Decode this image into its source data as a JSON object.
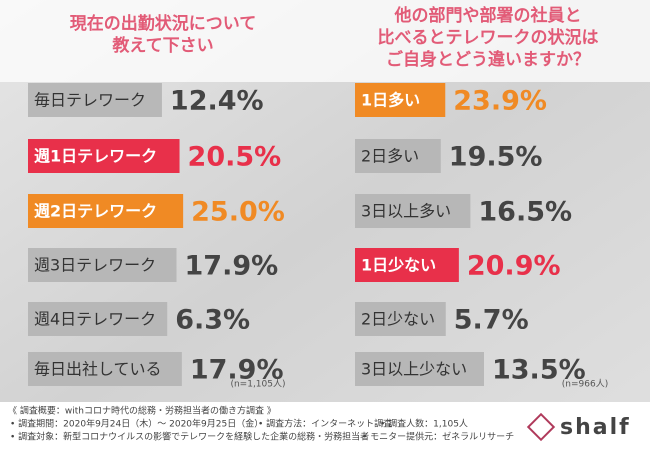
{
  "chart_data": [
    {
      "type": "bar",
      "orientation": "horizontal",
      "title": [
        "現在の出勤状況について",
        "教えて下さい"
      ],
      "categories": [
        "毎日テレワーク",
        "週1日テレワーク",
        "週2日テレワーク",
        "週3日テレワーク",
        "週4日テレワーク",
        "毎日出社している"
      ],
      "values": [
        12.4,
        20.5,
        25.0,
        17.9,
        6.3,
        17.9
      ],
      "value_labels": [
        "12.4%",
        "20.5%",
        "25.0%",
        "17.9%",
        "6.3%",
        "17.9%"
      ],
      "colors": [
        "#b4b4b4",
        "#e8304a",
        "#f08a24",
        "#b4b4b4",
        "#b4b4b4",
        "#b4b4b4"
      ],
      "value_label_colors": [
        "#444444",
        "#e8304a",
        "#f08a24",
        "#444444",
        "#444444",
        "#444444"
      ],
      "note": "(n=1,105人)"
    },
    {
      "type": "bar",
      "orientation": "horizontal",
      "title": [
        "他の部門や部署の社員と",
        "比べるとテレワークの状況は",
        "ご自身とどう違いますか？"
      ],
      "categories": [
        "1日多い",
        "2日多い",
        "3日以上多い",
        "1日少ない",
        "2日少ない",
        "3日以上少ない"
      ],
      "values": [
        23.9,
        19.5,
        16.5,
        20.9,
        5.7,
        13.5
      ],
      "value_labels": [
        "23.9%",
        "19.5%",
        "16.5%",
        "20.9%",
        "5.7%",
        "13.5%"
      ],
      "colors": [
        "#f08a24",
        "#b4b4b4",
        "#b4b4b4",
        "#e8304a",
        "#b4b4b4",
        "#b4b4b4"
      ],
      "value_label_colors": [
        "#f08a24",
        "#444444",
        "#444444",
        "#e8304a",
        "#444444",
        "#444444"
      ],
      "note": "(n=966人)"
    }
  ],
  "footer": {
    "heading": "《 調査概要：withコロナ時代の総務・労務担当者の働き方調査 》",
    "items": [
      "• 調査期間：2020年9月24日（木）～ 2020年9月25日（金）",
      "• 調査方法：インターネット調査",
      "• 調査人数：1,105人",
      "• 調査対象：新型コロナウイルスの影響でテレワークを経験した企業の総務・労務担当者",
      "• モニター提供元：ゼネラルリサーチ"
    ],
    "logo": "shalf"
  }
}
